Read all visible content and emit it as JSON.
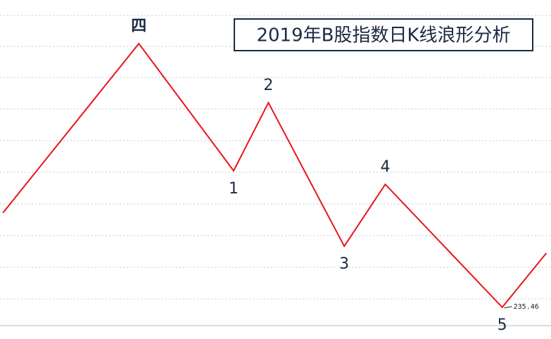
{
  "chart_data": {
    "type": "line",
    "title": "2019年B股指数日K线浪形分析",
    "x": [
      1,
      87,
      147,
      169,
      217,
      243,
      317,
      345
    ],
    "categories": [
      null,
      "四",
      "1",
      "2",
      "3",
      "4",
      "5",
      null
    ],
    "values": [
      266,
      320.7,
      279.6,
      301.6,
      255.2,
      275.2,
      235.46,
      253
    ],
    "color": "#e8141b",
    "xlim": [
      0,
      347
    ],
    "ylim": [
      225.2,
      334.8
    ]
  }
}
